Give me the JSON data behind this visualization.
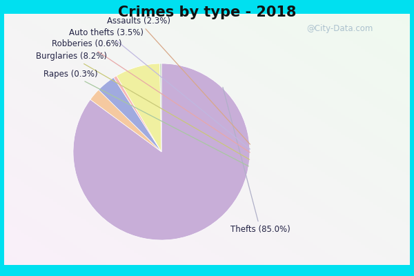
{
  "title": "Crimes by type - 2018",
  "slices": [
    {
      "label": "Thefts",
      "pct": 85.0,
      "color": "#c8aed8"
    },
    {
      "label": "Assaults",
      "pct": 2.3,
      "color": "#f5c9a0"
    },
    {
      "label": "Auto thefts",
      "pct": 3.5,
      "color": "#a0aadf"
    },
    {
      "label": "Robberies",
      "pct": 0.6,
      "color": "#f5b8b8"
    },
    {
      "label": "Burglaries",
      "pct": 8.2,
      "color": "#f0f0a0"
    },
    {
      "label": "Rapes",
      "pct": 0.3,
      "color": "#c8dcc0"
    }
  ],
  "border_color": "#00e0f0",
  "bg_color": "#e2f5e8",
  "title_fontsize": 15,
  "watermark": "@City-Data.com",
  "watermark_color": "#a0b8c8",
  "label_color": "#222244",
  "label_fontsize": 8.5,
  "thefts_label_fontsize": 8.5,
  "line_colors": {
    "Thefts": "#c8c8d8",
    "Assaults": "#e0b090",
    "Auto thefts": "#c0c0e8",
    "Robberies": "#f0b0b0",
    "Burglaries": "#d8d890",
    "Rapes": "#b8d0b8"
  }
}
